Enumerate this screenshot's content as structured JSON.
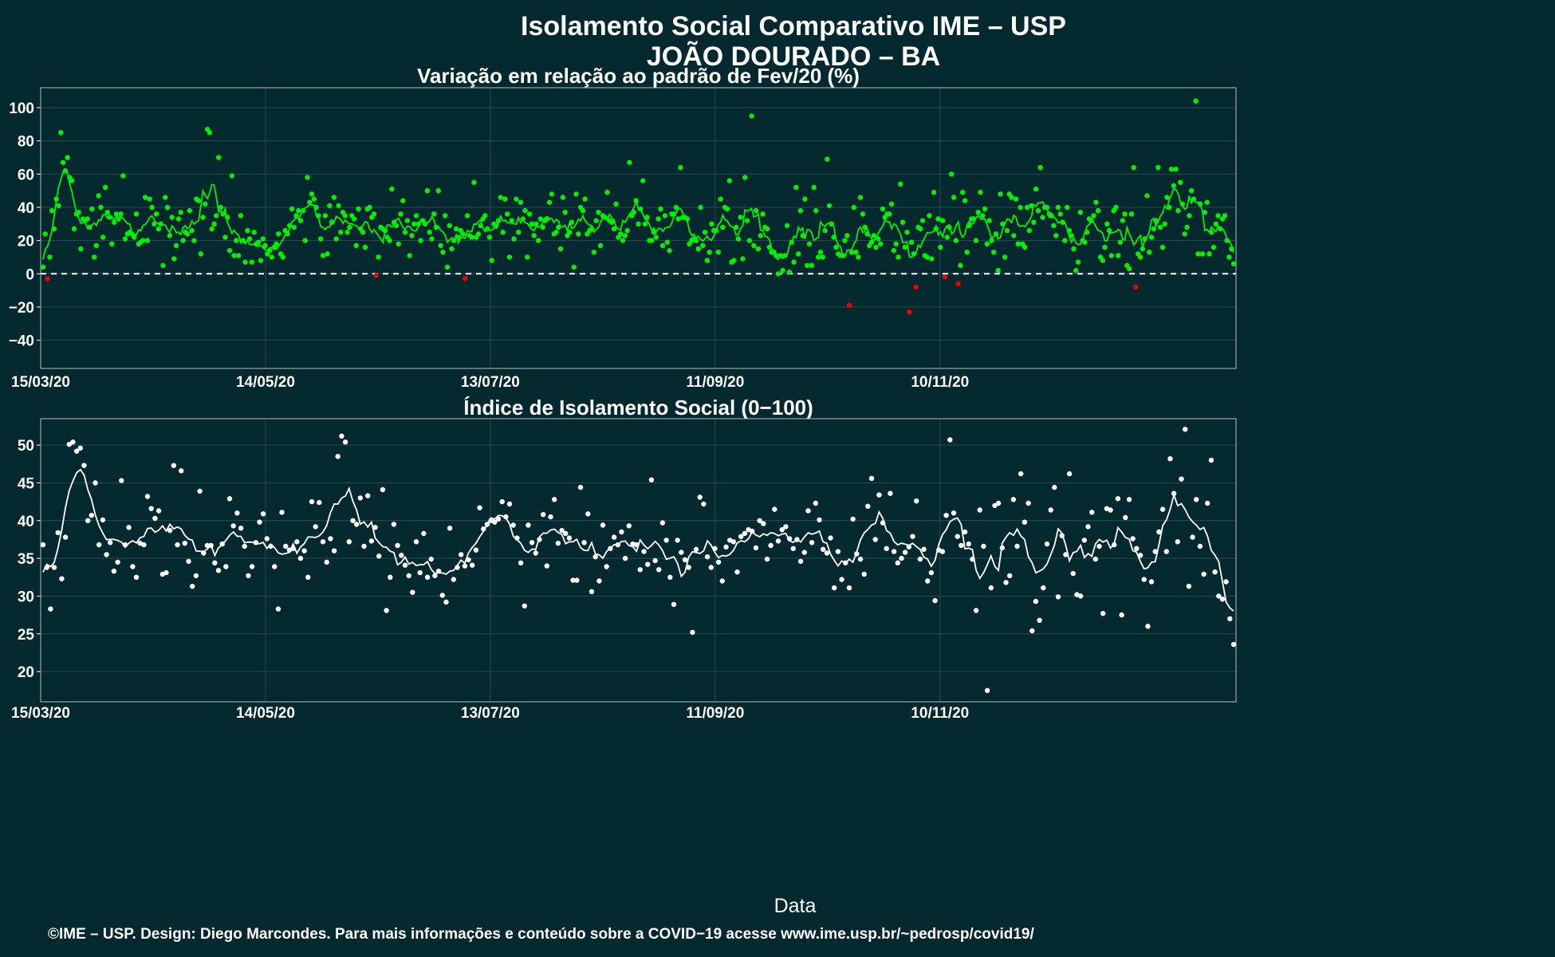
{
  "title_line1": "Isolamento Social Comparativo IME – USP",
  "title_line2": "JOÃO DOURADO – BA",
  "xlabel": "Data",
  "footer": "©IME – USP. Design: Diego Marcondes. Para mais informações e conteúdo sobre a COVID−19 acesse www.ime.usp.br/~pedrosp/covid19/",
  "colors": {
    "background": "#03292f",
    "positive_points": "#00ee00",
    "negative_points": "#ee0000",
    "index_points": "#ffffff",
    "smooth_line_top": "#00ee00",
    "smooth_line_bottom": "#ffffff"
  },
  "chart_data": [
    {
      "type": "scatter",
      "title": "Variação em relação ao padrão de Fev/20 (%)",
      "x_range": [
        "15/03/20",
        "28/01/21"
      ],
      "x_ticks": [
        "15/03/20",
        "14/05/20",
        "13/07/20",
        "11/09/20",
        "10/11/20"
      ],
      "y_ticks": [
        100,
        80,
        60,
        40,
        20,
        0,
        -20,
        -40
      ],
      "ylim": [
        -57,
        112
      ],
      "reference_line": 0,
      "grid": true,
      "series": [
        {
          "points": [
            4,
            24,
            -3,
            10,
            38,
            27,
            45,
            41,
            85,
            67,
            62,
            70,
            58,
            56,
            27,
            36,
            37,
            15,
            33,
            32,
            33,
            28,
            39,
            10,
            17,
            47,
            40,
            22,
            52,
            37,
            34,
            18,
            31,
            36,
            33,
            36,
            59,
            21,
            24,
            25,
            24,
            22,
            36,
            18,
            19,
            20,
            46,
            20,
            45,
            40,
            30,
            36,
            27,
            30,
            5,
            46,
            40,
            23,
            34,
            9,
            17,
            33,
            37,
            20,
            25,
            24,
            38,
            26,
            20,
            45,
            44,
            12,
            34,
            42,
            87,
            85,
            27,
            30,
            35,
            70,
            40,
            36,
            22,
            34,
            14,
            59,
            11,
            20,
            11,
            35,
            20,
            7,
            26,
            21,
            7,
            25,
            18,
            19,
            8,
            21,
            17,
            12,
            14,
            10,
            16,
            18,
            24,
            12,
            10,
            26,
            24,
            29,
            39,
            28,
            35,
            38,
            32,
            38,
            20,
            58,
            43,
            48,
            45,
            40,
            35,
            21,
            11,
            35,
            12,
            41,
            31,
            46,
            21,
            41,
            25,
            37,
            35,
            25,
            28,
            35,
            33,
            17,
            39,
            27,
            25,
            16,
            39,
            40,
            34,
            36,
            -1,
            10,
            28,
            27,
            26,
            22,
            20,
            51,
            31,
            29,
            18,
            36,
            44,
            25,
            32,
            11,
            23,
            30,
            35,
            30,
            20,
            32,
            30,
            50,
            25,
            21,
            36,
            28,
            50,
            17,
            13,
            35,
            4,
            29,
            15,
            20,
            27,
            22,
            26,
            24,
            -3,
            35,
            23,
            22,
            55,
            22,
            24,
            29,
            33,
            35,
            27,
            22,
            8,
            30,
            29,
            32,
            46,
            25,
            45,
            36,
            10,
            32,
            21,
            45,
            25,
            43,
            33,
            38,
            10,
            36,
            30,
            23,
            30,
            20,
            33,
            28,
            32,
            33,
            43,
            48,
            24,
            25,
            28,
            15,
            46,
            37,
            23,
            25,
            31,
            4,
            48,
            24,
            40,
            38,
            45,
            24,
            26,
            27,
            13,
            32,
            37,
            17,
            35,
            34,
            49,
            32,
            31,
            27,
            42,
            22,
            24,
            20,
            23,
            26,
            67,
            35,
            37,
            44,
            30,
            39,
            56,
            30,
            34,
            20,
            20,
            25,
            22,
            33,
            39,
            17,
            35,
            19,
            14,
            36,
            36,
            40,
            33,
            64,
            34,
            34,
            33,
            18,
            20,
            21,
            20,
            15,
            40,
            17,
            25,
            8,
            13,
            30,
            26,
            26,
            13,
            45,
            28,
            40,
            39,
            56,
            7,
            8,
            28,
            21,
            34,
            9,
            58,
            32,
            20,
            95,
            17,
            38,
            15,
            23,
            36,
            28,
            27,
            16,
            13,
            13,
            11,
            0,
            11,
            2,
            11,
            29,
            1,
            19,
            7,
            52,
            12,
            38,
            23,
            45,
            5,
            18,
            5,
            52,
            38,
            10,
            13,
            10,
            26,
            69,
            41,
            30,
            22,
            16,
            12,
            11,
            11,
            20,
            23,
            -19,
            13,
            40,
            13,
            10,
            46,
            36,
            28,
            24,
            17,
            19,
            23,
            16,
            21,
            18,
            39,
            34,
            36,
            36,
            42,
            14,
            18,
            10,
            54,
            31,
            16,
            25,
            -23,
            19,
            12,
            -8,
            28,
            27,
            32,
            11,
            10,
            35,
            9,
            49,
            27,
            33,
            16,
            32,
            -2,
            22,
            28,
            60,
            46,
            20,
            -6,
            5,
            49,
            44,
            13,
            29,
            33,
            33,
            20,
            37,
            49,
            35,
            39,
            18,
            32,
            20,
            13,
            24,
            2,
            48,
            30,
            10,
            26,
            48,
            46,
            23,
            45,
            18,
            40,
            18,
            16,
            40,
            26,
            41,
            31,
            51,
            38,
            64,
            34,
            40,
            40,
            36,
            35,
            29,
            23,
            40,
            36,
            31,
            20,
            40,
            26,
            23,
            15,
            2,
            7,
            37,
            20,
            19,
            25,
            33,
            32,
            35,
            43,
            38,
            10,
            8,
            16,
            30,
            26,
            11,
            38,
            40,
            11,
            19,
            32,
            36,
            5,
            3,
            36,
            64,
            -8,
            12,
            10,
            15,
            21,
            47,
            13,
            22,
            27,
            32,
            64,
            28,
            16,
            30,
            46,
            40,
            63,
            53,
            63,
            38,
            55,
            42,
            24,
            28,
            35,
            50,
            45,
            104,
            12,
            42,
            12,
            37,
            43,
            12,
            25,
            16,
            30,
            35,
            27,
            33,
            35,
            20,
            10,
            15,
            6
          ],
          "note": "values in % variation; points below 0 are drawn red"
        }
      ],
      "smooth_color": "#00ee00"
    },
    {
      "type": "scatter",
      "title": "Índice de Isolamento Social (0−100)",
      "x_range": [
        "15/03/20",
        "28/01/21"
      ],
      "x_ticks": [
        "15/03/20",
        "14/05/20",
        "13/07/20",
        "11/09/20",
        "10/11/20"
      ],
      "y_ticks": [
        50,
        45,
        40,
        35,
        30,
        25,
        20
      ],
      "ylim": [
        16.0,
        53.5
      ],
      "grid": true,
      "series": [
        {
          "points": [
            36.8,
            33.8,
            28.3,
            33.8,
            38.4,
            32.3,
            37.8,
            50.1,
            50.4,
            49.2,
            49.6,
            47.3,
            40,
            40.7,
            45,
            36.8,
            40.1,
            35.5,
            37.1,
            33.3,
            34.5,
            45.3,
            36.8,
            39.1,
            33.9,
            32.5,
            37,
            36.8,
            43.2,
            41.6,
            40.3,
            41.3,
            32.9,
            33.1,
            38.7,
            47.3,
            36.8,
            46.6,
            37,
            34.6,
            31.3,
            32.7,
            43.9,
            35.7,
            36.7,
            36.7,
            34.4,
            33.4,
            36.9,
            33.9,
            42.9,
            39.3,
            41,
            39,
            36.6,
            32.7,
            33.9,
            37.1,
            39.8,
            40.9,
            37.6,
            36.6,
            33.9,
            28.3,
            41.1,
            36.6,
            36.1,
            36.3,
            37.2,
            35,
            36,
            32.5,
            42.5,
            39.2,
            42.4,
            37.2,
            34.5,
            37.6,
            36,
            48.5,
            51.2,
            50.4,
            37.2,
            40,
            39.5,
            43,
            36.6,
            43.3,
            37.3,
            39.1,
            35.3,
            44.1,
            28.1,
            32.5,
            39.5,
            36.7,
            35.4,
            34.1,
            32.7,
            30.5,
            37.2,
            33.1,
            38.3,
            32.5,
            34.9,
            32.7,
            33.3,
            30.1,
            29.2,
            39,
            32.2,
            33.8,
            35.5,
            34,
            34.8,
            34.1,
            36.1,
            41.7,
            38.9,
            39.5,
            40,
            39.8,
            40.2,
            42.5,
            40.5,
            42.2,
            39.4,
            37.7,
            34.4,
            28.7,
            39.4,
            37.1,
            35.7,
            37.5,
            40.8,
            34,
            40.5,
            42.8,
            37,
            38.7,
            38.3,
            37.7,
            32.1,
            32.1,
            44.4,
            37.1,
            40.9,
            30.6,
            35.2,
            32,
            39.4,
            33.9,
            36.3,
            37.8,
            36.8,
            38.5,
            35,
            39.3,
            36.9,
            36.8,
            33.5,
            35.9,
            34.2,
            45.4,
            34.7,
            33.5,
            39.7,
            37.4,
            32.5,
            28.9,
            37.4,
            35.8,
            34.8,
            33.8,
            25.2,
            36.2,
            43.1,
            42.2,
            35.2,
            33.8,
            36.3,
            34.5,
            32,
            36.5,
            37.4,
            37.2,
            33.2,
            37.9,
            38.3,
            38.8,
            38.6,
            36.4,
            40,
            39.6,
            34.9,
            36.7,
            41.5,
            37.3,
            38.8,
            39.2,
            37.6,
            36.3,
            37.5,
            34.6,
            35.8,
            41.3,
            37.1,
            42.3,
            40.1,
            36.2,
            35.7,
            37.7,
            31.1,
            35.9,
            32.2,
            34.4,
            31.1,
            40.2,
            35.6,
            34.9,
            32.9,
            41.9,
            45.6,
            37.5,
            43.4,
            39.7,
            36.3,
            43.6,
            35.9,
            34.4,
            35,
            35.8,
            36.5,
            37.9,
            42.6,
            34.9,
            36.2,
            32,
            33.1,
            29.4,
            36.1,
            35.9,
            40.7,
            50.7,
            41,
            37.9,
            36.7,
            38.5,
            36.9,
            34.9,
            28.1,
            41.4,
            36.6,
            17.5,
            31.1,
            42,
            42.3,
            36.4,
            31.8,
            32.7,
            42.8,
            36.6,
            46.2,
            39.8,
            42.3,
            25.4,
            29.3,
            26.8,
            31.1,
            36.9,
            41.4,
            44.4,
            29.9,
            38,
            35.5,
            46.2,
            33,
            30.2,
            30,
            37.4,
            39.2,
            41.1,
            34.9,
            36.6,
            27.7,
            41.6,
            41.4,
            36.8,
            42.9,
            27.5,
            40.4,
            42.8,
            37.6,
            36.3,
            35.4,
            32.2,
            26,
            31.9,
            35.9,
            38.5,
            41.5,
            35.9,
            48.2,
            43.6,
            37.2,
            45.5,
            52.1,
            31.3,
            37.8,
            42.8,
            36.6,
            32.9,
            42.3,
            48,
            33.2,
            30,
            29.6,
            31.9,
            27,
            23.6
          ]
        }
      ],
      "smooth_color": "#ffffff"
    }
  ]
}
